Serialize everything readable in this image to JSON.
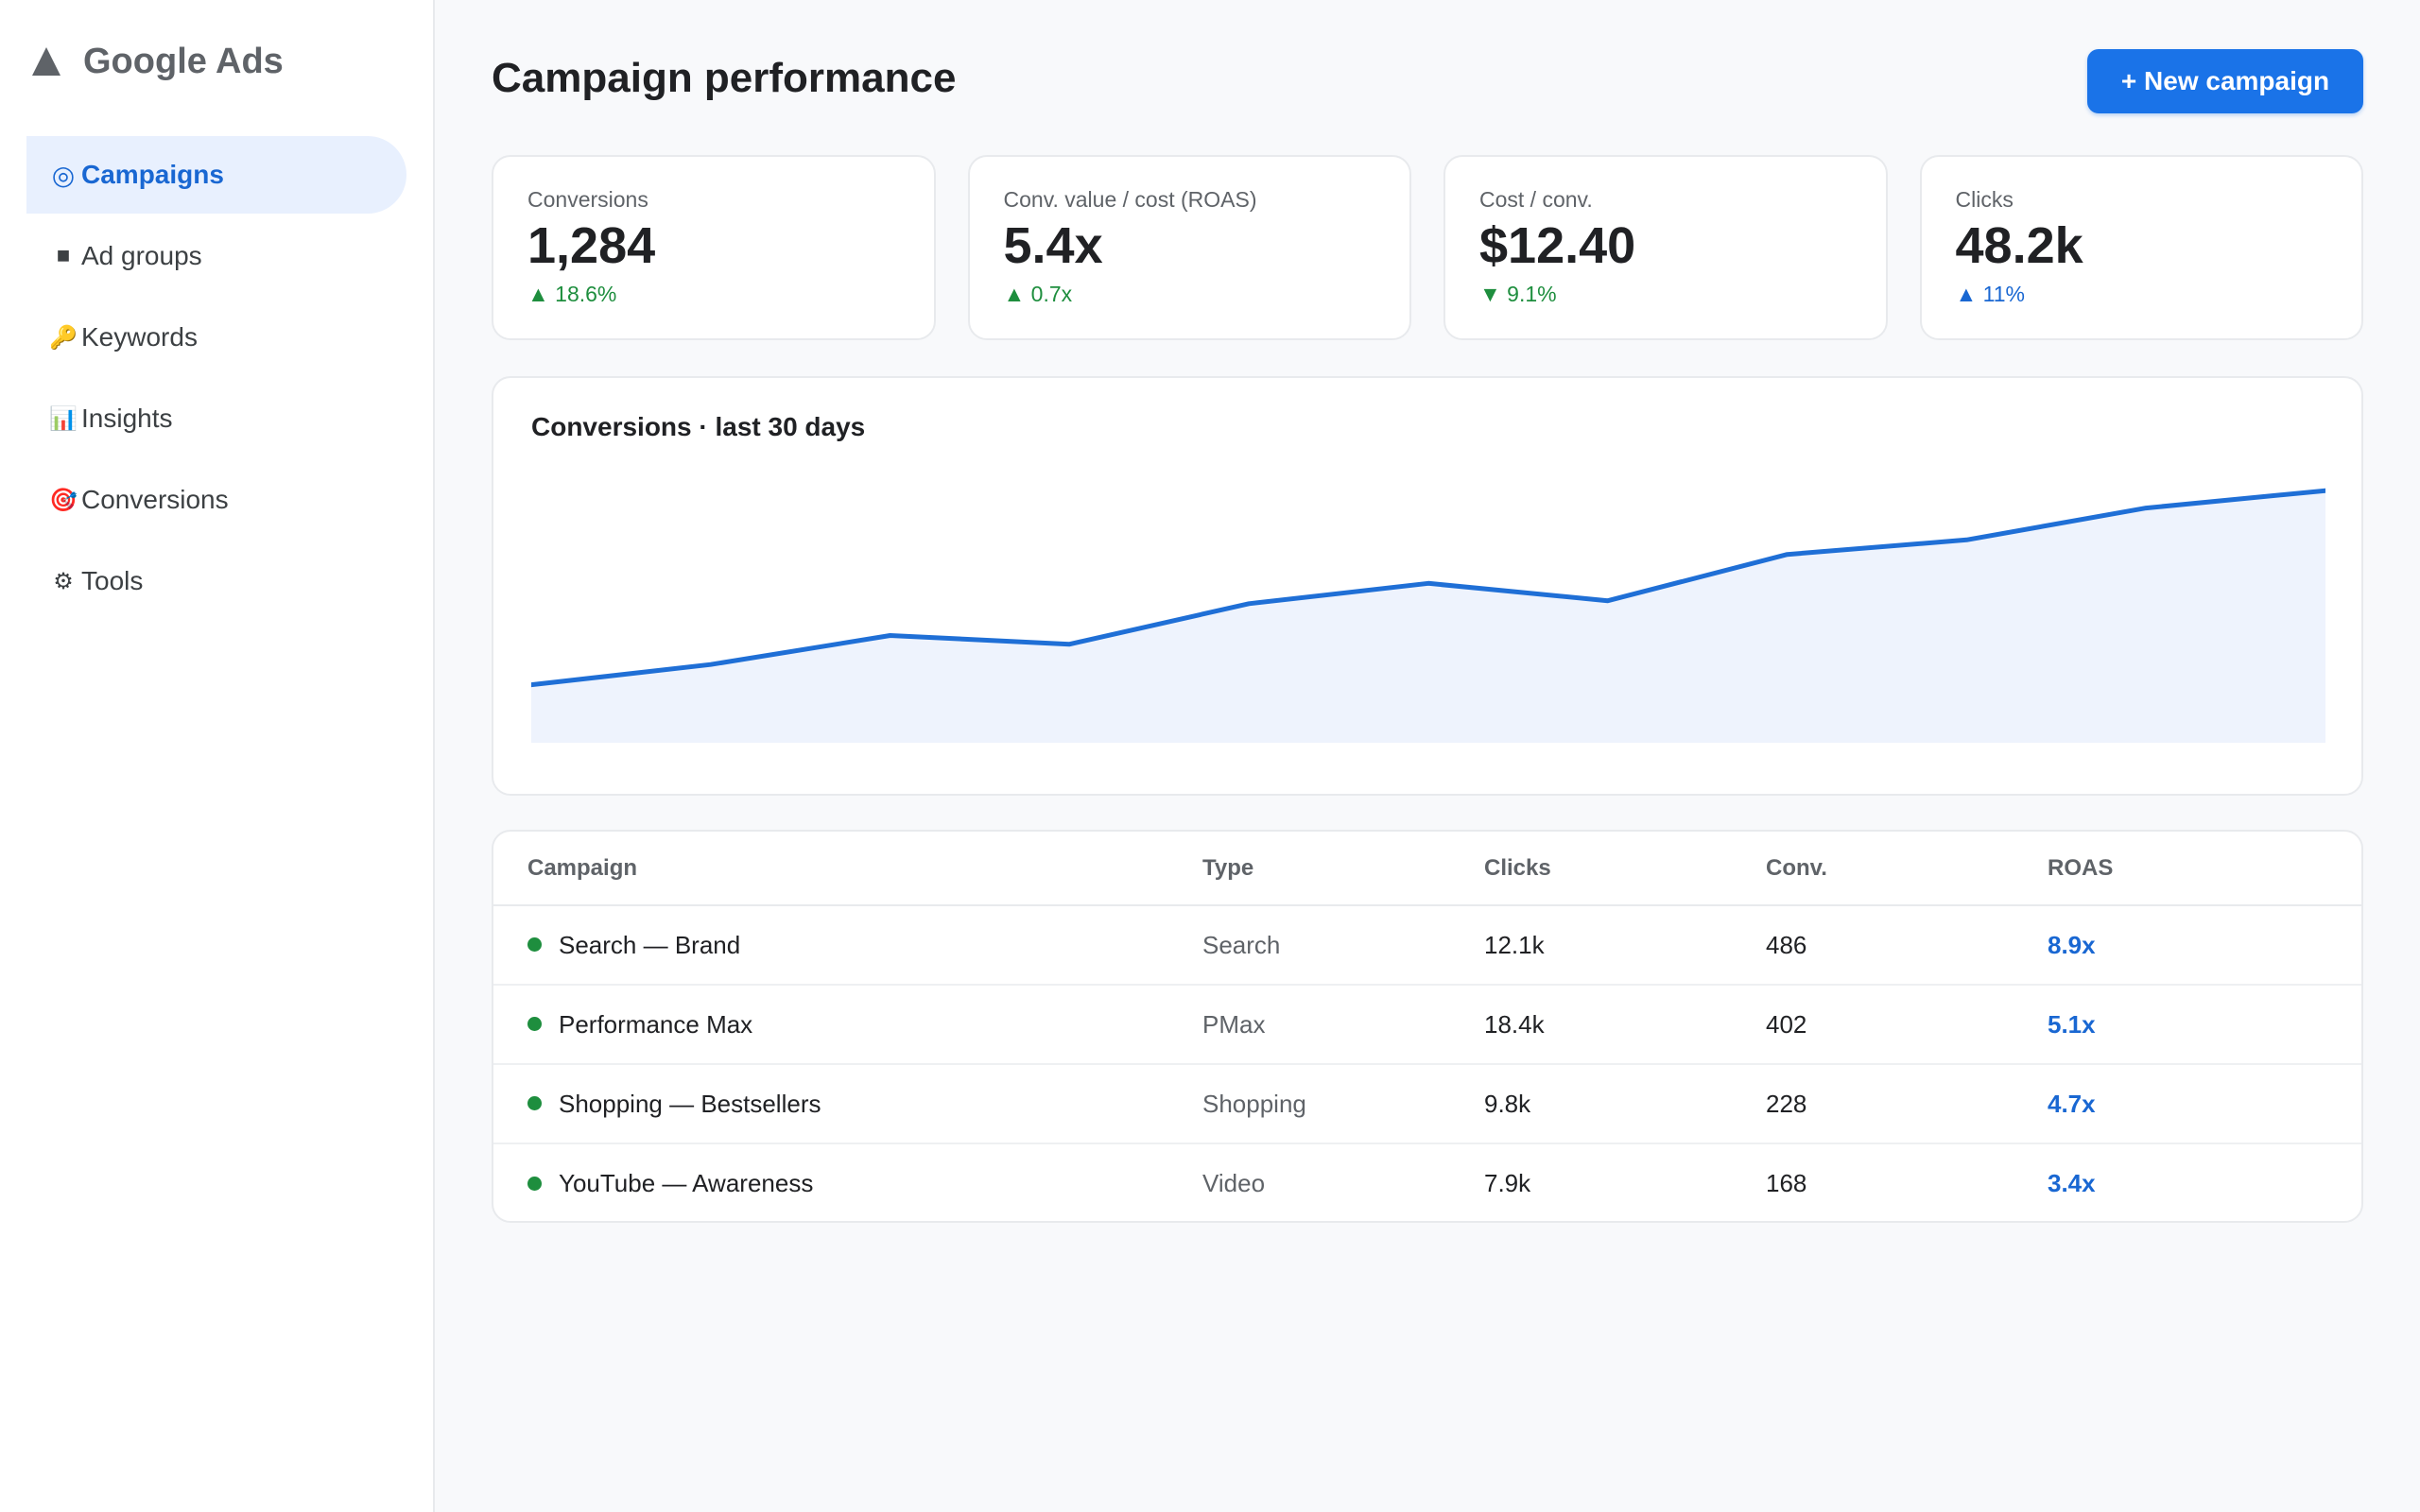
{
  "app": {
    "name": "Google Ads"
  },
  "sidebar": {
    "items": [
      {
        "label": "Campaigns",
        "icon": "target-icon",
        "glyph": "◎",
        "active": true
      },
      {
        "label": "Ad groups",
        "icon": "square-icon",
        "glyph": "■",
        "active": false
      },
      {
        "label": "Keywords",
        "icon": "key-icon",
        "glyph": "🔑",
        "active": false
      },
      {
        "label": "Insights",
        "icon": "bar-chart-icon",
        "glyph": "📊",
        "active": false
      },
      {
        "label": "Conversions",
        "icon": "dart-icon",
        "glyph": "🎯",
        "active": false
      },
      {
        "label": "Tools",
        "icon": "gear-icon",
        "glyph": "⚙",
        "active": false
      }
    ]
  },
  "header": {
    "title": "Campaign performance",
    "new_campaign_label": "+ New campaign"
  },
  "kpis": [
    {
      "label": "Conversions",
      "value": "1,284",
      "delta": "▲ 18.6%"
    },
    {
      "label": "Conv. value / cost (ROAS)",
      "value": "5.4x",
      "delta": "▲ 0.7x"
    },
    {
      "label": "Cost / conv.",
      "value": "$12.40",
      "delta": "▼ 9.1%"
    },
    {
      "label": "Clicks",
      "value": "48.2k",
      "delta": "▲ 11%"
    }
  ],
  "colors": {
    "accent": "#1a73e8",
    "line": "#1f6fd6",
    "area": "#eef3fd",
    "positive": "#1e8e3e"
  },
  "chart_data": {
    "type": "area",
    "title": "Conversions · last 30 days",
    "x": [
      1,
      2,
      3,
      4,
      5,
      6,
      7,
      8,
      9,
      10,
      11
    ],
    "series": [
      {
        "values": [
          30,
          37,
          47,
          44,
          58,
          65,
          59,
          75,
          80,
          91,
          97
        ]
      }
    ],
    "ylim": [
      10,
      100
    ],
    "grid": false
  },
  "table": {
    "headers": [
      "Campaign",
      "Type",
      "Clicks",
      "Conv.",
      "ROAS"
    ],
    "rows": [
      {
        "campaign": "Search — Brand",
        "type": "Search",
        "clicks": "12.1k",
        "conv": "486",
        "roas": "8.9x"
      },
      {
        "campaign": "Performance Max",
        "type": "PMax",
        "clicks": "18.4k",
        "conv": "402",
        "roas": "5.1x"
      },
      {
        "campaign": "Shopping — Bestsellers",
        "type": "Shopping",
        "clicks": "9.8k",
        "conv": "228",
        "roas": "4.7x"
      },
      {
        "campaign": "YouTube — Awareness",
        "type": "Video",
        "clicks": "7.9k",
        "conv": "168",
        "roas": "3.4x"
      }
    ]
  }
}
